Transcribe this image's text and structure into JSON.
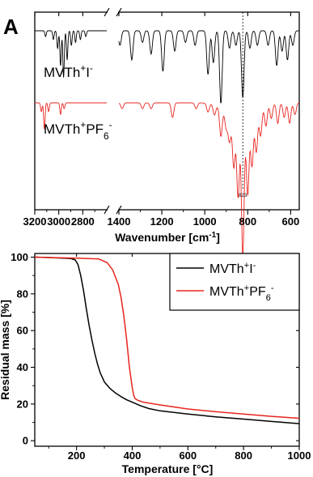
{
  "panel_label": "A",
  "chart_data": [
    {
      "type": "line",
      "xlabel": "Wavenumber [cm",
      "xlabel_sup": "-1",
      "xlabel_end": "]",
      "xlim": [
        3200,
        560
      ],
      "axis_break": [
        2600,
        1400
      ],
      "xticks": [
        "3200",
        "3000",
        "2800",
        "1400",
        "1200",
        "1000",
        "800",
        "600"
      ],
      "xtick_values": [
        3200,
        3000,
        2800,
        1400,
        1200,
        1000,
        800,
        600
      ],
      "grid": false,
      "reference_line": {
        "x": 823,
        "label": "823",
        "style": "dashed"
      },
      "series": [
        {
          "name": "MVTh⁺I⁻",
          "label": {
            "main": "MVTh",
            "sup1": "+",
            "mid": "I",
            "sup2": "-"
          },
          "color": "#000000",
          "baseline": 0.5,
          "peaks": [
            [
              3110,
              0.2
            ],
            [
              3045,
              0.3
            ],
            [
              3010,
              0.6
            ],
            [
              2985,
              1.2
            ],
            [
              2960,
              1.6
            ],
            [
              2930,
              1.0
            ],
            [
              2895,
              0.5
            ],
            [
              2860,
              0.4
            ],
            [
              2820,
              0.3
            ],
            [
              2775,
              0.2
            ],
            [
              1395,
              0.5
            ],
            [
              1340,
              1.0
            ],
            [
              1290,
              0.4
            ],
            [
              1250,
              0.8
            ],
            [
              1195,
              1.4
            ],
            [
              1140,
              0.7
            ],
            [
              1090,
              0.4
            ],
            [
              1045,
              0.5
            ],
            [
              985,
              1.5
            ],
            [
              960,
              1.1
            ],
            [
              925,
              2.5
            ],
            [
              885,
              0.6
            ],
            [
              855,
              0.5
            ],
            [
              823,
              2.3
            ],
            [
              790,
              0.6
            ],
            [
              755,
              0.5
            ],
            [
              705,
              0.5
            ],
            [
              665,
              1.2
            ],
            [
              640,
              0.7
            ],
            [
              615,
              1.0
            ],
            [
              590,
              0.5
            ]
          ]
        },
        {
          "name": "MVTh⁺PF₆⁻",
          "label": {
            "main": "MVTh",
            "sup1": "+",
            "mid": "PF",
            "sub": "6",
            "sup2": "-"
          },
          "color": "#e8251f",
          "baseline": 4.0,
          "peaks": [
            [
              3145,
              0.3
            ],
            [
              3120,
              0.9
            ],
            [
              3085,
              0.3
            ],
            [
              2985,
              0.4
            ],
            [
              2955,
              0.2
            ],
            [
              1385,
              0.2
            ],
            [
              1290,
              0.2
            ],
            [
              1250,
              0.2
            ],
            [
              1150,
              0.5
            ],
            [
              1040,
              0.2
            ],
            [
              985,
              0.3
            ],
            [
              955,
              0.35
            ],
            [
              925,
              0.95
            ],
            [
              900,
              0.5
            ],
            [
              885,
              0.8
            ],
            [
              865,
              1.5
            ],
            [
              845,
              2.4
            ],
            [
              823,
              4.4
            ],
            [
              800,
              2.4
            ],
            [
              780,
              1.6
            ],
            [
              760,
              1.3
            ],
            [
              740,
              0.9
            ],
            [
              715,
              0.7
            ],
            [
              690,
              0.5
            ],
            [
              660,
              0.7
            ],
            [
              630,
              0.5
            ],
            [
              605,
              0.7
            ],
            [
              580,
              0.4
            ]
          ]
        }
      ]
    },
    {
      "type": "line",
      "xlabel": "Temperature [°C]",
      "ylabel": "Residual mass [%]",
      "xlim": [
        50,
        1000
      ],
      "ylim": [
        -3,
        102
      ],
      "xticks": [
        "200",
        "400",
        "600",
        "800",
        "1000"
      ],
      "xtick_values": [
        200,
        400,
        600,
        800,
        1000
      ],
      "yticks": [
        "0",
        "20",
        "40",
        "60",
        "80",
        "100"
      ],
      "ytick_values": [
        0,
        20,
        40,
        60,
        80,
        100
      ],
      "grid": false,
      "legend_position": "top-right",
      "series": [
        {
          "name": "MVTh⁺I⁻",
          "label": {
            "main": "MVTh",
            "sup1": "+",
            "mid": "I",
            "sup2": "-"
          },
          "color": "#000000",
          "x": [
            50,
            100,
            150,
            180,
            195,
            205,
            215,
            225,
            235,
            245,
            255,
            265,
            275,
            285,
            300,
            320,
            340,
            360,
            380,
            400,
            430,
            460,
            500,
            600,
            700,
            800,
            900,
            1000
          ],
          "y": [
            100,
            99.8,
            99.5,
            99.2,
            98.5,
            96,
            90,
            82,
            72,
            63,
            55,
            48,
            42,
            37,
            32,
            28.5,
            26,
            24,
            22.3,
            21,
            19,
            17.5,
            16.3,
            14.5,
            13,
            11.8,
            10.5,
            9.3
          ]
        },
        {
          "name": "MVTh⁺PF₆⁻",
          "label": {
            "main": "MVTh",
            "sup1": "+",
            "mid": "PF",
            "sub": "6",
            "sup2": "-"
          },
          "color": "#e8251f",
          "x": [
            50,
            100,
            200,
            280,
            310,
            330,
            350,
            360,
            370,
            380,
            390,
            400,
            405,
            410,
            420,
            440,
            500,
            600,
            700,
            800,
            900,
            1000
          ],
          "y": [
            100,
            99.8,
            99.5,
            99,
            97,
            93,
            85,
            78,
            68,
            55,
            40,
            29,
            25,
            23,
            22,
            21,
            19.5,
            17.3,
            15.8,
            14.5,
            13.3,
            12.2
          ]
        }
      ]
    }
  ]
}
